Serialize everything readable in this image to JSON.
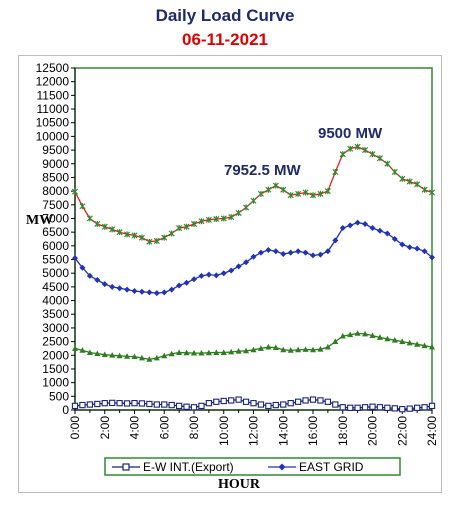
{
  "header": {
    "title": "Daily Load Curve",
    "date": "06-11-2021"
  },
  "colors": {
    "plot_border": "#2e8b2e",
    "east_grid": "#2233b5",
    "load_line": "#e02020",
    "load_marker": "#2e8b2e",
    "lower_series": "#2e7d1e",
    "ew_int": "#1a237e",
    "annotation": "#1f2a6b"
  },
  "chart_data": {
    "type": "line",
    "title": "Daily Load Curve",
    "subtitle": "06-11-2021",
    "xlabel": "HOUR",
    "ylabel": "MW",
    "ylim": [
      0,
      12500
    ],
    "yticks": [
      0,
      500,
      1000,
      1500,
      2000,
      2500,
      3000,
      3500,
      4000,
      4500,
      5000,
      5500,
      6000,
      6500,
      7000,
      7500,
      8000,
      8500,
      9000,
      9500,
      10000,
      10500,
      11000,
      11500,
      12000,
      12500
    ],
    "xlim": [
      0,
      24
    ],
    "xticks": [
      "0:00",
      "2:00",
      "4:00",
      "6:00",
      "8:00",
      "10:00",
      "12:00",
      "14:00",
      "16:00",
      "18:00",
      "20:00",
      "22:00",
      "24:00"
    ],
    "x": [
      0,
      0.5,
      1,
      1.5,
      2,
      2.5,
      3,
      3.5,
      4,
      4.5,
      5,
      5.5,
      6,
      6.5,
      7,
      7.5,
      8,
      8.5,
      9,
      9.5,
      10,
      10.5,
      11,
      11.5,
      12,
      12.5,
      13,
      13.5,
      14,
      14.5,
      15,
      15.5,
      16,
      16.5,
      17,
      17.5,
      18,
      18.5,
      19,
      19.5,
      20,
      20.5,
      21,
      21.5,
      22,
      22.5,
      23,
      23.5,
      24
    ],
    "series": [
      {
        "values": [
          7980,
          7450,
          7000,
          6800,
          6700,
          6600,
          6500,
          6420,
          6380,
          6300,
          6150,
          6180,
          6300,
          6450,
          6650,
          6700,
          6800,
          6900,
          6950,
          6980,
          7000,
          7050,
          7200,
          7400,
          7650,
          7900,
          8050,
          8200,
          8050,
          7850,
          7900,
          7950,
          7850,
          7900,
          8000,
          8700,
          9350,
          9550,
          9620,
          9500,
          9350,
          9200,
          9000,
          8700,
          8450,
          8350,
          8250,
          8050,
          7950
        ]
      },
      {
        "name": "EAST GRID",
        "values": [
          5550,
          5200,
          4900,
          4750,
          4600,
          4500,
          4450,
          4400,
          4350,
          4320,
          4300,
          4270,
          4300,
          4400,
          4550,
          4650,
          4780,
          4900,
          4950,
          4920,
          5000,
          5100,
          5250,
          5400,
          5600,
          5750,
          5850,
          5800,
          5700,
          5750,
          5800,
          5750,
          5650,
          5680,
          5800,
          6200,
          6650,
          6750,
          6850,
          6800,
          6650,
          6550,
          6450,
          6250,
          6050,
          5950,
          5900,
          5800,
          5580
        ]
      },
      {
        "values": [
          2250,
          2180,
          2100,
          2060,
          2020,
          2000,
          1980,
          1960,
          1950,
          1900,
          1850,
          1900,
          1980,
          2050,
          2100,
          2090,
          2080,
          2080,
          2090,
          2100,
          2100,
          2120,
          2150,
          2160,
          2200,
          2250,
          2300,
          2280,
          2200,
          2180,
          2200,
          2210,
          2200,
          2220,
          2300,
          2500,
          2700,
          2750,
          2800,
          2780,
          2720,
          2650,
          2600,
          2550,
          2500,
          2450,
          2400,
          2350,
          2300
        ]
      },
      {
        "name": "E-W INT.(Export)",
        "values": [
          150,
          180,
          200,
          220,
          250,
          260,
          250,
          240,
          250,
          240,
          220,
          200,
          200,
          180,
          150,
          120,
          100,
          150,
          250,
          300,
          330,
          350,
          380,
          300,
          250,
          200,
          150,
          180,
          200,
          250,
          300,
          350,
          380,
          350,
          300,
          200,
          100,
          80,
          80,
          100,
          120,
          100,
          80,
          60,
          30,
          50,
          80,
          100,
          150
        ]
      }
    ],
    "annotations": [
      "7952.5 MW",
      "9500 MW"
    ],
    "legend": {
      "position": "bottom",
      "entries": [
        "E-W INT.(Export)",
        "EAST GRID"
      ]
    },
    "grid": false
  }
}
